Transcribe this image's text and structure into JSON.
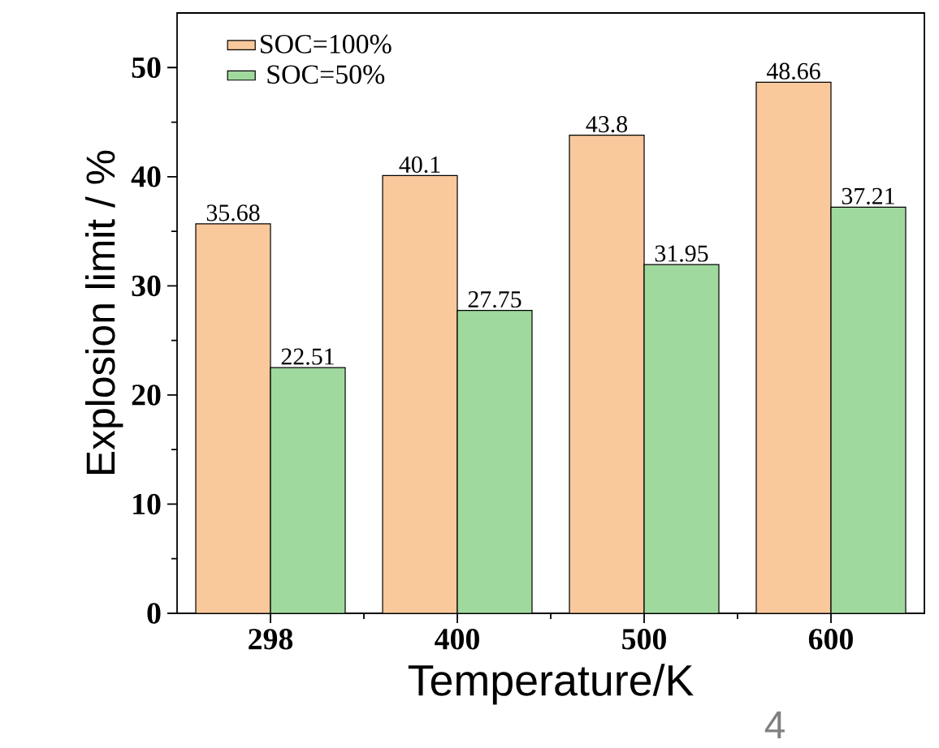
{
  "chart_data": {
    "type": "bar",
    "xlabel": "Temperature/K",
    "ylabel": "Explosion limit / %",
    "categories": [
      "298",
      "400",
      "500",
      "600"
    ],
    "series": [
      {
        "name": "SOC=100%",
        "color": "#f9c89b",
        "values": [
          35.68,
          40.1,
          43.8,
          48.66
        ]
      },
      {
        "name": "SOC=50%",
        "color": "#a0d99e",
        "values": [
          22.51,
          27.75,
          31.95,
          37.21
        ]
      }
    ],
    "ylim": [
      0,
      55
    ],
    "yticks": [
      0,
      10,
      20,
      30,
      40,
      50
    ],
    "data_labels": true,
    "legend": "top left",
    "grid": false,
    "annotations": [
      "4"
    ]
  }
}
